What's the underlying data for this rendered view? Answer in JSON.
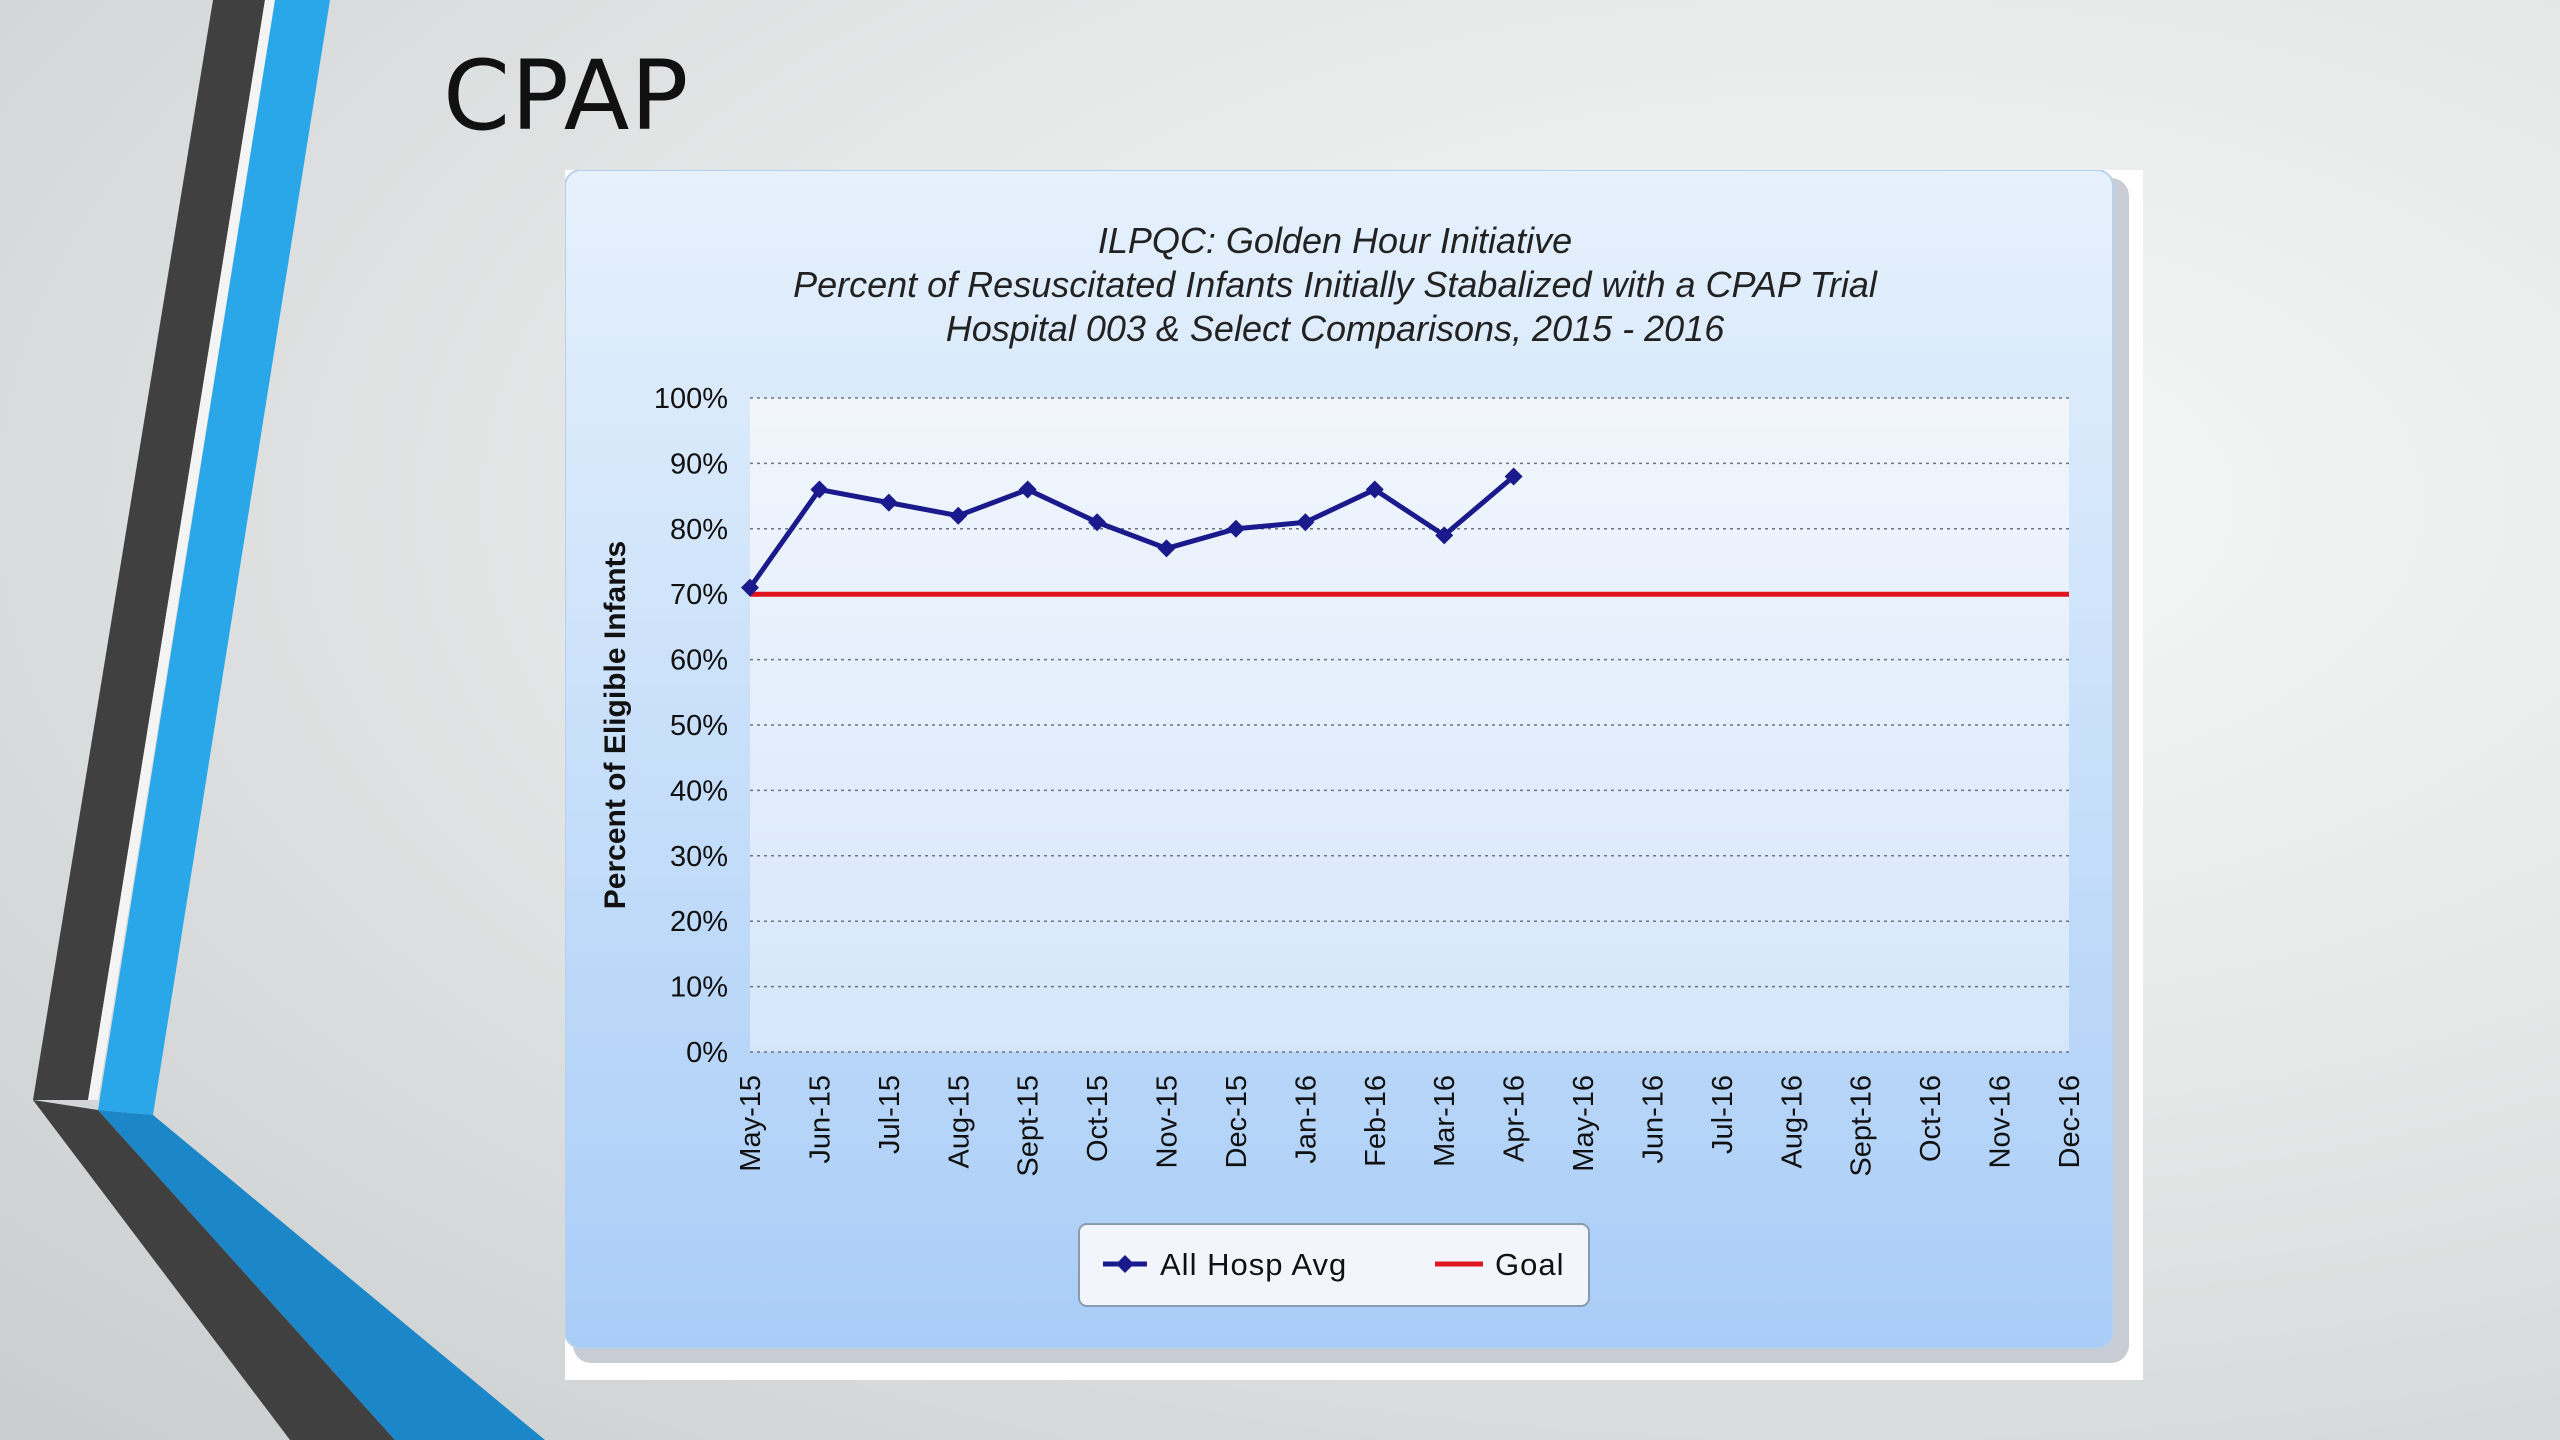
{
  "slide": {
    "title": "CPAP"
  },
  "colors": {
    "series": "#1a1a8c",
    "goal": "#e0141e",
    "panel_top": "#e6f1fc",
    "panel_bottom": "#a9cdf7",
    "plot_top": "#f2f6fc",
    "plot_bottom": "#d5e6fb",
    "accent_blue": "#29a7e8",
    "accent_dark": "#404040"
  },
  "chart_data": {
    "type": "line",
    "title": "ILPQC: Golden Hour Initiative",
    "subtitle": [
      "Percent of Resuscitated Infants Initially Stabalized with a CPAP Trial",
      "Hospital 003 & Select Comparisons, 2015 - 2016"
    ],
    "xlabel": "",
    "ylabel": "Percent of Eligible Infants",
    "categories": [
      "May-15",
      "Jun-15",
      "Jul-15",
      "Aug-15",
      "Sept-15",
      "Oct-15",
      "Nov-15",
      "Dec-15",
      "Jan-16",
      "Feb-16",
      "Mar-16",
      "Apr-16",
      "May-16",
      "Jun-16",
      "Jul-16",
      "Aug-16",
      "Sept-16",
      "Oct-16",
      "Nov-16",
      "Dec-16"
    ],
    "yticks": [
      "0%",
      "10%",
      "20%",
      "30%",
      "40%",
      "50%",
      "60%",
      "70%",
      "80%",
      "90%",
      "100%"
    ],
    "ylim": [
      0,
      100
    ],
    "grid": true,
    "legend_position": "bottom",
    "series": [
      {
        "name": "All Hosp Avg",
        "values": [
          71,
          86,
          84,
          82,
          86,
          81,
          77,
          80,
          81,
          86,
          79,
          88,
          null,
          null,
          null,
          null,
          null,
          null,
          null,
          null
        ],
        "marker": "diamond"
      },
      {
        "name": "Goal",
        "values": [
          70,
          70,
          70,
          70,
          70,
          70,
          70,
          70,
          70,
          70,
          70,
          70,
          70,
          70,
          70,
          70,
          70,
          70,
          70,
          70
        ],
        "marker": "none"
      }
    ]
  }
}
